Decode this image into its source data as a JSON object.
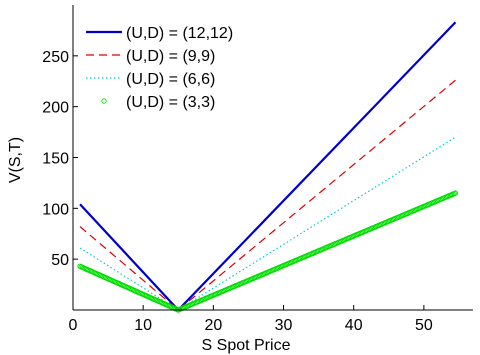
{
  "chart_data": {
    "type": "line",
    "title": "",
    "xlabel": "S Spot Price",
    "ylabel": "V(S,T)",
    "xlim": [
      0,
      57
    ],
    "ylim": [
      0,
      300
    ],
    "xticks": [
      0,
      10,
      20,
      30,
      40,
      50
    ],
    "yticks": [
      50,
      100,
      150,
      200,
      250
    ],
    "grid": false,
    "legend_position": "top-left",
    "series": [
      {
        "name": "(U,D) = (12,12)",
        "color": "#0000cc",
        "style": "solid",
        "x": [
          1,
          15,
          54.5
        ],
        "y": [
          104,
          0,
          283
        ]
      },
      {
        "name": "(U,D) = (9,9)",
        "color": "#dd0000",
        "style": "dashed",
        "x": [
          1,
          15,
          54.5
        ],
        "y": [
          82,
          0,
          226
        ]
      },
      {
        "name": "(U,D) = (6,6)",
        "color": "#00cccc",
        "style": "dotted",
        "x": [
          1,
          15,
          54.5
        ],
        "y": [
          61,
          0,
          170
        ]
      },
      {
        "name": "(U,D) = (3,3)",
        "color": "#00dd00",
        "style": "markers",
        "x": [
          1,
          15,
          54.5
        ],
        "y": [
          43,
          0,
          115
        ]
      }
    ]
  }
}
